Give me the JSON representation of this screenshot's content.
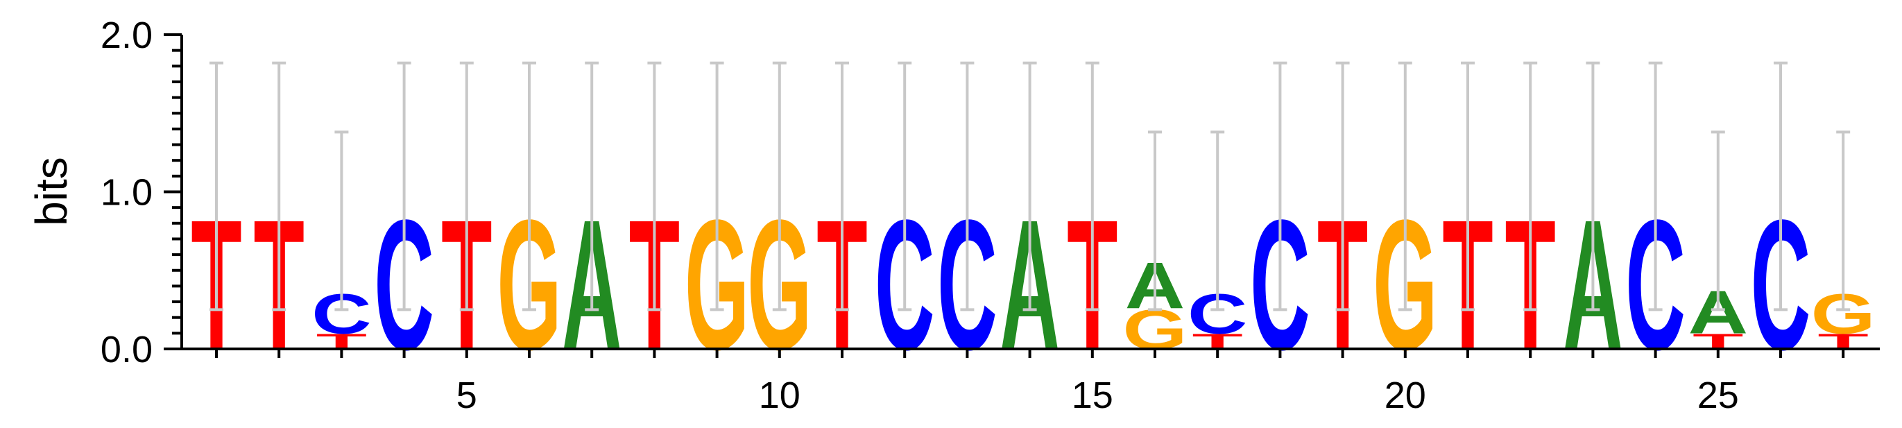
{
  "chart_data": {
    "type": "sequence-logo",
    "ylabel": "bits",
    "ylim": [
      0,
      2
    ],
    "y_ticks": [
      "0.0",
      "1.0",
      "2.0"
    ],
    "x_ticks": [
      "5",
      "10",
      "15",
      "20",
      "25"
    ],
    "x_tick_values": [
      5,
      10,
      15,
      20,
      25
    ],
    "colors": {
      "A": "#228B22",
      "C": "#0000FF",
      "G": "#FFA500",
      "T": "#FF0000",
      "error_bar": "#C8C8C8"
    },
    "positions": [
      {
        "pos": 1,
        "letters": [
          {
            "base": "T",
            "bits": 0.85
          }
        ],
        "error_top": 1.82
      },
      {
        "pos": 2,
        "letters": [
          {
            "base": "T",
            "bits": 0.85
          }
        ],
        "error_top": 1.82
      },
      {
        "pos": 3,
        "letters": [
          {
            "base": "T",
            "bits": 0.1
          },
          {
            "base": "C",
            "bits": 0.26
          }
        ],
        "error_top": 1.38
      },
      {
        "pos": 4,
        "letters": [
          {
            "base": "C",
            "bits": 0.85
          }
        ],
        "error_top": 1.82
      },
      {
        "pos": 5,
        "letters": [
          {
            "base": "T",
            "bits": 0.85
          }
        ],
        "error_top": 1.82
      },
      {
        "pos": 6,
        "letters": [
          {
            "base": "G",
            "bits": 0.85
          }
        ],
        "error_top": 1.82
      },
      {
        "pos": 7,
        "letters": [
          {
            "base": "A",
            "bits": 0.85
          }
        ],
        "error_top": 1.82
      },
      {
        "pos": 8,
        "letters": [
          {
            "base": "T",
            "bits": 0.85
          }
        ],
        "error_top": 1.82
      },
      {
        "pos": 9,
        "letters": [
          {
            "base": "G",
            "bits": 0.85
          }
        ],
        "error_top": 1.82
      },
      {
        "pos": 10,
        "letters": [
          {
            "base": "G",
            "bits": 0.85
          }
        ],
        "error_top": 1.82
      },
      {
        "pos": 11,
        "letters": [
          {
            "base": "T",
            "bits": 0.85
          }
        ],
        "error_top": 1.82
      },
      {
        "pos": 12,
        "letters": [
          {
            "base": "C",
            "bits": 0.85
          }
        ],
        "error_top": 1.82
      },
      {
        "pos": 13,
        "letters": [
          {
            "base": "C",
            "bits": 0.85
          }
        ],
        "error_top": 1.82
      },
      {
        "pos": 14,
        "letters": [
          {
            "base": "A",
            "bits": 0.85
          }
        ],
        "error_top": 1.82
      },
      {
        "pos": 15,
        "letters": [
          {
            "base": "T",
            "bits": 0.85
          }
        ],
        "error_top": 1.82
      },
      {
        "pos": 16,
        "letters": [
          {
            "base": "G",
            "bits": 0.26
          },
          {
            "base": "A",
            "bits": 0.3
          }
        ],
        "error_top": 1.38
      },
      {
        "pos": 17,
        "letters": [
          {
            "base": "T",
            "bits": 0.1
          },
          {
            "base": "C",
            "bits": 0.26
          }
        ],
        "error_top": 1.38
      },
      {
        "pos": 18,
        "letters": [
          {
            "base": "C",
            "bits": 0.85
          }
        ],
        "error_top": 1.82
      },
      {
        "pos": 19,
        "letters": [
          {
            "base": "T",
            "bits": 0.85
          }
        ],
        "error_top": 1.82
      },
      {
        "pos": 20,
        "letters": [
          {
            "base": "G",
            "bits": 0.85
          }
        ],
        "error_top": 1.82
      },
      {
        "pos": 21,
        "letters": [
          {
            "base": "T",
            "bits": 0.85
          }
        ],
        "error_top": 1.82
      },
      {
        "pos": 22,
        "letters": [
          {
            "base": "T",
            "bits": 0.85
          }
        ],
        "error_top": 1.82
      },
      {
        "pos": 23,
        "letters": [
          {
            "base": "A",
            "bits": 0.85
          }
        ],
        "error_top": 1.82
      },
      {
        "pos": 24,
        "letters": [
          {
            "base": "C",
            "bits": 0.85
          }
        ],
        "error_top": 1.82
      },
      {
        "pos": 25,
        "letters": [
          {
            "base": "T",
            "bits": 0.1
          },
          {
            "base": "A",
            "bits": 0.28
          }
        ],
        "error_top": 1.38
      },
      {
        "pos": 26,
        "letters": [
          {
            "base": "C",
            "bits": 0.85
          }
        ],
        "error_top": 1.82
      },
      {
        "pos": 27,
        "letters": [
          {
            "base": "T",
            "bits": 0.1
          },
          {
            "base": "G",
            "bits": 0.26
          }
        ],
        "error_top": 1.38
      }
    ]
  }
}
